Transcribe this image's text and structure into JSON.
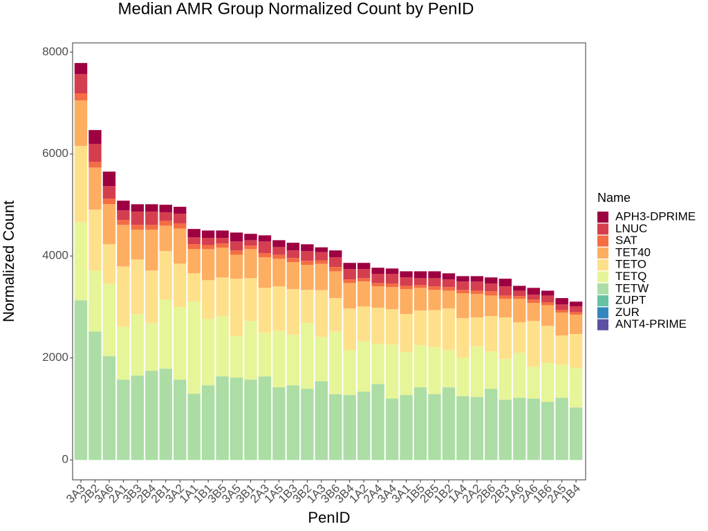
{
  "chart_data": {
    "type": "stacked-bar",
    "title": "Median AMR Group Normalized Count by PenID",
    "x_label": "PenID",
    "y_label": "Normalized Count",
    "legend_title": "Name",
    "categories": [
      "3A3",
      "2B2",
      "3A6",
      "2A1",
      "3B3",
      "2B4",
      "2B1",
      "3A2",
      "1A1",
      "1B1",
      "3B5",
      "3A5",
      "3B1",
      "2A3",
      "1A5",
      "1B3",
      "3B2",
      "1A3",
      "3B6",
      "3B4",
      "1A2",
      "2A4",
      "3A4",
      "3A1",
      "1B5",
      "2B5",
      "1B2",
      "1A4",
      "2A2",
      "2B6",
      "2B3",
      "1A6",
      "2A6",
      "1B6",
      "2A5",
      "1B4"
    ],
    "series": [
      {
        "name": "APH3-DPRIME",
        "color": "#9E0142",
        "values": [
          215,
          270,
          285,
          190,
          145,
          145,
          150,
          135,
          165,
          145,
          145,
          175,
          125,
          120,
          135,
          150,
          135,
          95,
          135,
          120,
          120,
          120,
          105,
          120,
          135,
          135,
          120,
          105,
          105,
          120,
          150,
          95,
          135,
          95,
          125,
          95
        ]
      },
      {
        "name": "LNUC",
        "color": "#D53E4F",
        "values": [
          380,
          355,
          245,
          190,
          260,
          260,
          165,
          190,
          135,
          140,
          110,
          175,
          105,
          230,
          150,
          150,
          190,
          160,
          190,
          205,
          180,
          180,
          190,
          165,
          135,
          160,
          150,
          165,
          180,
          150,
          180,
          105,
          95,
          135,
          110,
          110
        ]
      },
      {
        "name": "SAT",
        "color": "#F46D43",
        "values": [
          140,
          110,
          105,
          95,
          95,
          95,
          95,
          100,
          95,
          80,
          80,
          85,
          70,
          80,
          80,
          80,
          80,
          70,
          85,
          70,
          65,
          65,
          70,
          65,
          55,
          70,
          70,
          65,
          65,
          85,
          65,
          55,
          65,
          55,
          50,
          50
        ]
      },
      {
        "name": "TET40",
        "color": "#FDAE61",
        "values": [
          890,
          825,
          790,
          815,
          585,
          800,
          500,
          690,
          475,
          610,
          585,
          470,
          570,
          600,
          540,
          530,
          490,
          515,
          525,
          500,
          490,
          420,
          435,
          490,
          445,
          395,
          350,
          490,
          460,
          405,
          365,
          460,
          355,
          405,
          450,
          380
        ]
      },
      {
        "name": "TETO",
        "color": "#FEE08B",
        "values": [
          1495,
          1195,
          770,
          1180,
          1070,
          1030,
          950,
          850,
          555,
          760,
          760,
          1130,
          840,
          880,
          870,
          895,
          650,
          915,
          655,
          815,
          680,
          705,
          690,
          745,
          680,
          730,
          815,
          775,
          570,
          690,
          815,
          600,
          895,
          730,
          570,
          665
        ]
      },
      {
        "name": "TETQ",
        "color": "#E6F598",
        "values": [
          1535,
          1195,
          1425,
          1040,
          1205,
          935,
          1355,
          1425,
          1805,
          1300,
          1180,
          810,
          1150,
          855,
          1110,
          990,
          1290,
          870,
          1230,
          880,
          990,
          790,
          1060,
          840,
          825,
          920,
          730,
          755,
          990,
          735,
          800,
          880,
          625,
          760,
          650,
          775
        ]
      },
      {
        "name": "TETW",
        "color": "#ABDDA4",
        "values": [
          3130,
          2520,
          2035,
          1575,
          1655,
          1750,
          1790,
          1575,
          1300,
          1465,
          1640,
          1615,
          1575,
          1640,
          1425,
          1465,
          1395,
          1545,
          1290,
          1275,
          1340,
          1490,
          1205,
          1275,
          1425,
          1290,
          1425,
          1250,
          1235,
          1395,
          1180,
          1220,
          1205,
          1140,
          1220,
          1030
        ]
      },
      {
        "name": "ZUPT",
        "color": "#66C2A5",
        "values": [
          0,
          0,
          0,
          0,
          0,
          0,
          0,
          0,
          0,
          0,
          0,
          0,
          0,
          0,
          0,
          0,
          0,
          0,
          0,
          0,
          0,
          0,
          0,
          0,
          0,
          0,
          0,
          0,
          0,
          0,
          0,
          0,
          0,
          0,
          0,
          0
        ]
      },
      {
        "name": "ZUR",
        "color": "#3288BD",
        "values": [
          0,
          0,
          0,
          0,
          0,
          0,
          0,
          0,
          0,
          0,
          0,
          0,
          0,
          0,
          0,
          0,
          0,
          0,
          0,
          0,
          0,
          0,
          0,
          0,
          0,
          0,
          0,
          0,
          0,
          0,
          0,
          0,
          0,
          0,
          0,
          0
        ]
      },
      {
        "name": "ANT4-PRIME",
        "color": "#5E4FA2",
        "values": [
          0,
          0,
          0,
          0,
          0,
          0,
          0,
          0,
          0,
          0,
          0,
          0,
          0,
          0,
          0,
          0,
          0,
          0,
          0,
          0,
          0,
          0,
          0,
          0,
          0,
          0,
          0,
          0,
          0,
          0,
          0,
          0,
          0,
          0,
          0,
          0
        ]
      }
    ],
    "ylim": [
      -390,
      8180
    ],
    "yticks": [
      0,
      2000,
      4000,
      6000,
      8000
    ],
    "grid": false,
    "legend": "right"
  }
}
